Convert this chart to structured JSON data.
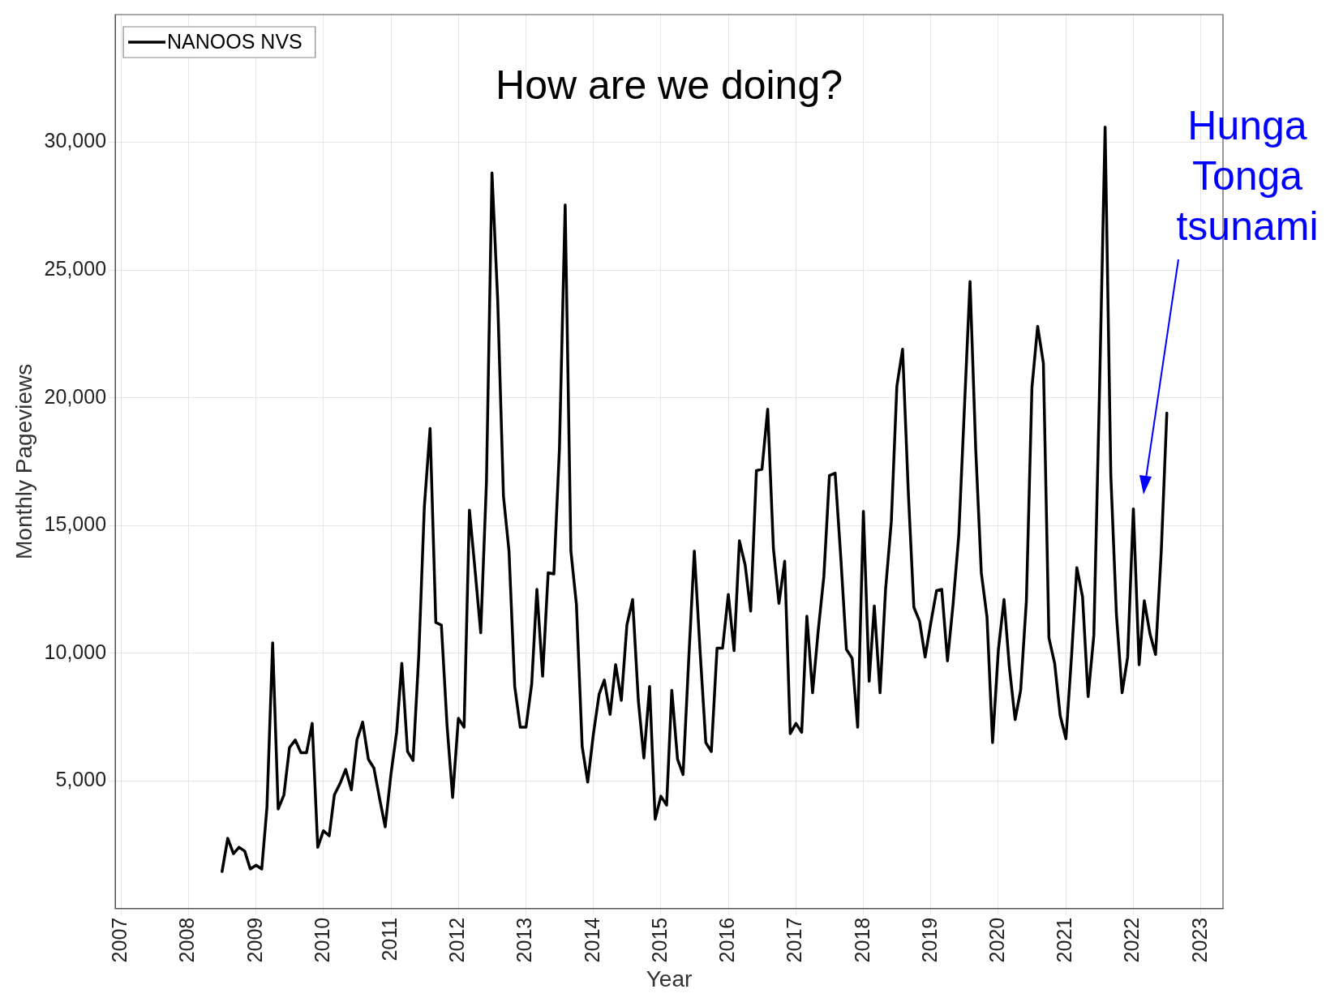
{
  "chart_data": {
    "type": "line",
    "title": "How are we doing?",
    "xlabel": "Year",
    "ylabel": "Monthly Pageviews",
    "x": [
      "2008-07",
      "2008-08",
      "2008-09",
      "2008-10",
      "2008-11",
      "2008-12",
      "2009-01",
      "2009-02",
      "2009-03",
      "2009-04",
      "2009-05",
      "2009-06",
      "2009-07",
      "2009-08",
      "2009-09",
      "2009-10",
      "2009-11",
      "2009-12",
      "2010-01",
      "2010-02",
      "2010-03",
      "2010-04",
      "2010-05",
      "2010-06",
      "2010-07",
      "2010-08",
      "2010-09",
      "2010-10",
      "2010-11",
      "2010-12",
      "2011-01",
      "2011-02",
      "2011-03",
      "2011-04",
      "2011-05",
      "2011-06",
      "2011-07",
      "2011-08",
      "2011-09",
      "2011-10",
      "2011-11",
      "2011-12",
      "2012-01",
      "2012-02",
      "2012-03",
      "2012-04",
      "2012-05",
      "2012-06",
      "2012-07",
      "2012-08",
      "2012-09",
      "2012-10",
      "2012-11",
      "2012-12",
      "2013-01",
      "2013-02",
      "2013-03",
      "2013-04",
      "2013-05",
      "2013-06",
      "2013-07",
      "2013-08",
      "2013-09",
      "2013-10",
      "2013-11",
      "2013-12",
      "2014-01",
      "2014-02",
      "2014-03",
      "2014-04",
      "2014-05",
      "2014-06",
      "2014-07",
      "2014-08",
      "2014-09",
      "2014-10",
      "2014-11",
      "2014-12",
      "2015-01",
      "2015-02",
      "2015-03",
      "2015-04",
      "2015-05",
      "2015-06",
      "2015-07",
      "2015-08",
      "2015-09",
      "2015-10",
      "2015-11",
      "2015-12",
      "2016-01",
      "2016-02",
      "2016-03",
      "2016-04",
      "2016-05",
      "2016-06",
      "2016-07",
      "2016-08",
      "2016-09",
      "2016-10",
      "2016-11",
      "2016-12",
      "2017-01",
      "2017-02",
      "2017-03",
      "2017-04",
      "2017-05",
      "2017-06",
      "2017-07",
      "2017-08",
      "2017-09",
      "2017-10",
      "2017-11",
      "2017-12",
      "2018-01",
      "2018-02",
      "2018-03",
      "2018-04",
      "2018-05",
      "2018-06",
      "2018-07",
      "2018-08",
      "2018-09",
      "2018-10",
      "2018-11",
      "2018-12",
      "2019-01",
      "2019-02",
      "2019-03",
      "2019-04",
      "2019-05",
      "2019-06",
      "2019-07",
      "2019-08",
      "2019-09",
      "2019-10",
      "2019-11",
      "2019-12",
      "2020-01",
      "2020-02",
      "2020-03",
      "2020-04",
      "2020-05",
      "2020-06",
      "2020-07",
      "2020-08",
      "2020-09",
      "2020-10",
      "2020-11",
      "2020-12",
      "2021-01",
      "2021-02",
      "2021-03",
      "2021-04",
      "2021-05",
      "2021-06",
      "2021-07",
      "2021-08",
      "2021-09",
      "2021-10",
      "2021-11",
      "2021-12",
      "2022-01",
      "2022-02",
      "2022-03",
      "2022-04",
      "2022-05",
      "2022-06",
      "2022-07"
    ],
    "series": [
      {
        "name": "NANOOS NVS",
        "color": "#000000",
        "values": [
          1450,
          2750,
          2150,
          2400,
          2250,
          1550,
          1700,
          1550,
          3950,
          10400,
          3900,
          4450,
          6300,
          6600,
          6100,
          6100,
          7250,
          2400,
          3050,
          2850,
          4450,
          4900,
          5450,
          4650,
          6600,
          7300,
          5850,
          5500,
          4300,
          3200,
          5250,
          6900,
          9600,
          6150,
          5800,
          9950,
          15750,
          18800,
          11200,
          11100,
          7150,
          4350,
          7450,
          7100,
          15600,
          13200,
          10800,
          16700,
          28800,
          23800,
          16150,
          14000,
          8700,
          7100,
          7100,
          8800,
          12500,
          9100,
          13150,
          13100,
          18000,
          27550,
          14000,
          11900,
          6350,
          4950,
          6850,
          8400,
          8950,
          7600,
          9550,
          8150,
          11100,
          12100,
          8150,
          5900,
          8700,
          3500,
          4400,
          4050,
          8550,
          5850,
          5250,
          9800,
          14000,
          10100,
          6500,
          6150,
          10200,
          10200,
          12300,
          10100,
          14400,
          13450,
          11650,
          17150,
          17200,
          19550,
          14100,
          11950,
          13600,
          6850,
          7250,
          6900,
          11450,
          8450,
          10850,
          13000,
          16950,
          17050,
          13700,
          10150,
          9800,
          7100,
          15550,
          8900,
          11850,
          8450,
          12500,
          15150,
          20450,
          21900,
          16300,
          11800,
          11250,
          9850,
          11200,
          12450,
          12500,
          9700,
          11900,
          14600,
          19500,
          24550,
          17950,
          13150,
          11400,
          6500,
          10100,
          12100,
          9450,
          7400,
          8550,
          12050,
          20400,
          22800,
          21350,
          10600,
          9600,
          7550,
          6650,
          9950,
          13350,
          12200,
          8300,
          10700,
          20050,
          30600,
          16950,
          11550,
          8450,
          9850,
          15650,
          9550,
          12050,
          10750,
          9950,
          14000,
          19400
        ]
      }
    ],
    "xlim": [
      "2006-12",
      "2023-05"
    ],
    "xticks": [
      "2007",
      "2008",
      "2009",
      "2010",
      "2011",
      "2012",
      "2013",
      "2014",
      "2015",
      "2016",
      "2017",
      "2018",
      "2019",
      "2020",
      "2021",
      "2022",
      "2023"
    ],
    "ylim": [
      0,
      35000
    ],
    "yticks": [
      {
        "value": 5000,
        "label": "5,000"
      },
      {
        "value": 10000,
        "label": "10,000"
      },
      {
        "value": 15000,
        "label": "15,000"
      },
      {
        "value": 20000,
        "label": "20,000"
      },
      {
        "value": 25000,
        "label": "25,000"
      },
      {
        "value": 30000,
        "label": "30,000"
      }
    ],
    "grid": true,
    "legend": "top left",
    "marker": "none",
    "line_style": "solid",
    "annotations": [
      "Hunga Tonga tsunami"
    ]
  }
}
